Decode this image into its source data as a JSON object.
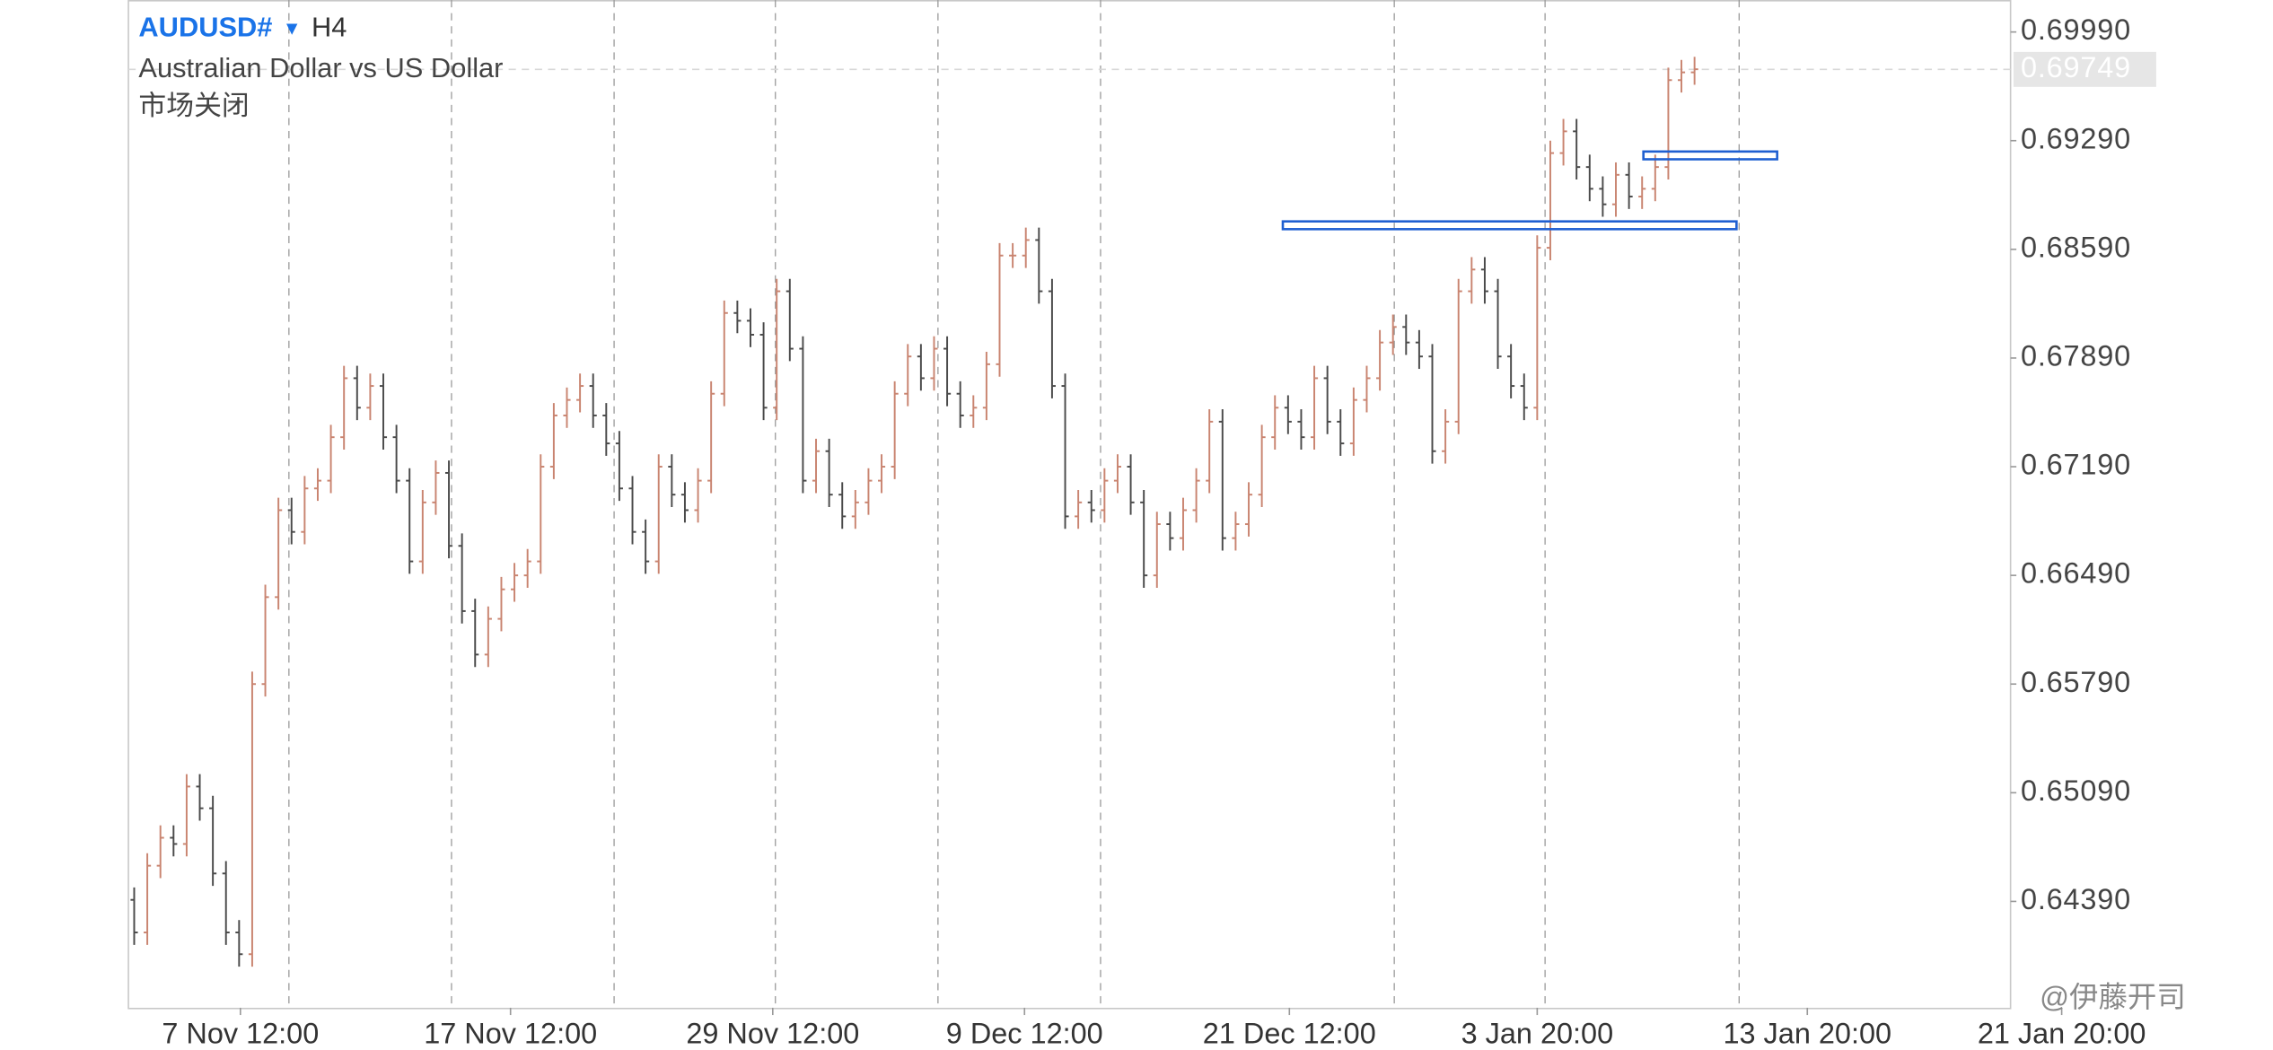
{
  "chart_data": {
    "type": "ohlc",
    "title": "AUDUSD#",
    "timeframe": "H4",
    "subtitle": "Australian Dollar vs US Dollar",
    "status": "市场关闭",
    "watermark": "@伊藤开司",
    "title_color": "#1a73e8",
    "up_color": "#c98470",
    "down_color": "#4a4a4a",
    "open": [
      0.644,
      0.6419,
      0.6462,
      0.648,
      0.6476,
      0.6513,
      0.6499,
      0.6457,
      0.6419,
      0.6405,
      0.6579,
      0.6635,
      0.6691,
      0.6677,
      0.6705,
      0.671,
      0.6738,
      0.6776,
      0.6757,
      0.6771,
      0.6738,
      0.671,
      0.6658,
      0.6696,
      0.6715,
      0.6668,
      0.6626,
      0.6598,
      0.6621,
      0.664,
      0.6649,
      0.6658,
      0.6719,
      0.6752,
      0.6762,
      0.6771,
      0.6752,
      0.6734,
      0.6705,
      0.6677,
      0.6658,
      0.6719,
      0.6701,
      0.6691,
      0.671,
      0.6766,
      0.6818,
      0.6813,
      0.6804,
      0.6757,
      0.6832,
      0.6795,
      0.671,
      0.6729,
      0.6701,
      0.6687,
      0.6696,
      0.671,
      0.6719,
      0.6766,
      0.679,
      0.6776,
      0.6795,
      0.6766,
      0.6752,
      0.6757,
      0.6785,
      0.6855,
      0.6855,
      0.6865,
      0.6832,
      0.6771,
      0.6687,
      0.6696,
      0.6691,
      0.671,
      0.6719,
      0.6696,
      0.6649,
      0.6682,
      0.6673,
      0.6691,
      0.671,
      0.6748,
      0.6673,
      0.6682,
      0.6701,
      0.6738,
      0.6757,
      0.6748,
      0.6738,
      0.6776,
      0.6748,
      0.6734,
      0.6762,
      0.6776,
      0.6799,
      0.6809,
      0.6799,
      0.679,
      0.6729,
      0.6748,
      0.6832,
      0.6846,
      0.6832,
      0.679,
      0.6771,
      0.6757,
      0.686,
      0.6921,
      0.6935,
      0.6912,
      0.6898,
      0.6888,
      0.6907,
      0.6893,
      0.6898,
      0.6912,
      0.6968,
      0.6973
    ],
    "high": [
      0.6448,
      0.647,
      0.6488,
      0.6488,
      0.6521,
      0.6521,
      0.6507,
      0.6465,
      0.6427,
      0.6587,
      0.6643,
      0.6699,
      0.6699,
      0.6713,
      0.6718,
      0.6746,
      0.6784,
      0.6784,
      0.6779,
      0.6779,
      0.6746,
      0.6718,
      0.6704,
      0.6723,
      0.6723,
      0.6676,
      0.6634,
      0.6629,
      0.6648,
      0.6657,
      0.6666,
      0.6727,
      0.676,
      0.677,
      0.6779,
      0.6779,
      0.676,
      0.6742,
      0.6713,
      0.6685,
      0.6727,
      0.6727,
      0.6709,
      0.6718,
      0.6774,
      0.6826,
      0.6826,
      0.6821,
      0.6812,
      0.684,
      0.684,
      0.6803,
      0.6737,
      0.6737,
      0.6709,
      0.6704,
      0.6718,
      0.6727,
      0.6774,
      0.6798,
      0.6798,
      0.6803,
      0.6803,
      0.6774,
      0.6765,
      0.6793,
      0.6863,
      0.6863,
      0.6873,
      0.6873,
      0.684,
      0.6779,
      0.6704,
      0.6704,
      0.6718,
      0.6727,
      0.6727,
      0.6704,
      0.669,
      0.669,
      0.6699,
      0.6718,
      0.6756,
      0.6756,
      0.669,
      0.6709,
      0.6746,
      0.6765,
      0.6765,
      0.6756,
      0.6784,
      0.6784,
      0.6756,
      0.677,
      0.6784,
      0.6807,
      0.6817,
      0.6817,
      0.6807,
      0.6798,
      0.6756,
      0.684,
      0.6854,
      0.6854,
      0.684,
      0.6798,
      0.6779,
      0.6868,
      0.6929,
      0.6943,
      0.6943,
      0.692,
      0.6906,
      0.6915,
      0.6915,
      0.6906,
      0.692,
      0.6976,
      0.6981,
      0.6983
    ],
    "low": [
      0.6411,
      0.6411,
      0.6454,
      0.6468,
      0.6468,
      0.6491,
      0.6449,
      0.6411,
      0.6397,
      0.6397,
      0.6571,
      0.6627,
      0.6669,
      0.6669,
      0.6697,
      0.6702,
      0.673,
      0.6749,
      0.6749,
      0.673,
      0.6702,
      0.665,
      0.665,
      0.6688,
      0.666,
      0.6618,
      0.659,
      0.659,
      0.6613,
      0.6632,
      0.6641,
      0.665,
      0.6711,
      0.6744,
      0.6754,
      0.6744,
      0.6726,
      0.6697,
      0.6669,
      0.665,
      0.665,
      0.6693,
      0.6683,
      0.6683,
      0.6702,
      0.6758,
      0.6805,
      0.6796,
      0.6749,
      0.6749,
      0.6787,
      0.6702,
      0.6702,
      0.6693,
      0.6679,
      0.6679,
      0.6688,
      0.6702,
      0.6711,
      0.6758,
      0.6768,
      0.6768,
      0.6758,
      0.6744,
      0.6744,
      0.6749,
      0.6777,
      0.6847,
      0.6847,
      0.6824,
      0.6763,
      0.6679,
      0.6679,
      0.6683,
      0.6683,
      0.6702,
      0.6688,
      0.6641,
      0.6641,
      0.6665,
      0.6665,
      0.6683,
      0.6702,
      0.6665,
      0.6665,
      0.6674,
      0.6693,
      0.673,
      0.674,
      0.673,
      0.673,
      0.674,
      0.6726,
      0.6726,
      0.6754,
      0.6768,
      0.6791,
      0.6791,
      0.6782,
      0.6721,
      0.6721,
      0.674,
      0.6824,
      0.6824,
      0.6782,
      0.6763,
      0.6749,
      0.6749,
      0.6852,
      0.6913,
      0.6904,
      0.689,
      0.688,
      0.688,
      0.6885,
      0.6885,
      0.689,
      0.6904,
      0.696,
      0.6965
    ],
    "close": [
      0.6419,
      0.6462,
      0.648,
      0.6476,
      0.6513,
      0.6499,
      0.6457,
      0.6419,
      0.6405,
      0.6579,
      0.6635,
      0.6691,
      0.6677,
      0.6705,
      0.671,
      0.6738,
      0.6776,
      0.6757,
      0.6771,
      0.6738,
      0.671,
      0.6658,
      0.6696,
      0.6715,
      0.6668,
      0.6626,
      0.6598,
      0.6621,
      0.664,
      0.6649,
      0.6658,
      0.6719,
      0.6752,
      0.6762,
      0.6771,
      0.6752,
      0.6734,
      0.6705,
      0.6677,
      0.6658,
      0.6719,
      0.6701,
      0.6691,
      0.671,
      0.6766,
      0.6818,
      0.6813,
      0.6804,
      0.6757,
      0.6832,
      0.6795,
      0.671,
      0.6729,
      0.6701,
      0.6687,
      0.6696,
      0.671,
      0.6719,
      0.6766,
      0.679,
      0.6776,
      0.6795,
      0.6766,
      0.6752,
      0.6757,
      0.6785,
      0.6855,
      0.6855,
      0.6865,
      0.6832,
      0.6771,
      0.6687,
      0.6696,
      0.6691,
      0.671,
      0.6719,
      0.6696,
      0.6649,
      0.6682,
      0.6673,
      0.6691,
      0.671,
      0.6748,
      0.6673,
      0.6682,
      0.6701,
      0.6738,
      0.6757,
      0.6748,
      0.6738,
      0.6776,
      0.6748,
      0.6734,
      0.6762,
      0.6776,
      0.6799,
      0.6809,
      0.6799,
      0.679,
      0.6729,
      0.6748,
      0.6832,
      0.6846,
      0.6832,
      0.679,
      0.6771,
      0.6757,
      0.686,
      0.6921,
      0.6935,
      0.6912,
      0.6898,
      0.6888,
      0.6907,
      0.6893,
      0.6898,
      0.6912,
      0.6968,
      0.6973,
      0.6975
    ],
    "xlim": [
      -0.44,
      143.1
    ],
    "xticks": [
      {
        "value": 8.1,
        "label": "7 Nov 12:00"
      },
      {
        "value": 28.7,
        "label": "17 Nov 12:00"
      },
      {
        "value": 48.7,
        "label": "29 Nov 12:00"
      },
      {
        "value": 67.9,
        "label": "9 Dec 12:00"
      },
      {
        "value": 88.1,
        "label": "21 Dec 12:00"
      },
      {
        "value": 107.0,
        "label": "3 Jan 20:00"
      },
      {
        "value": 127.6,
        "label": "13 Jan 20:00"
      },
      {
        "value": 147.0,
        "label": "21 Jan 20:00"
      }
    ],
    "period_separators": [
      11.8,
      24.2,
      36.6,
      48.9,
      61.3,
      73.7,
      96.1,
      107.6,
      122.4
    ],
    "ylim": [
      0.63705,
      0.70196
    ],
    "yticks": [
      {
        "value": 0.6999,
        "label": "0.69990"
      },
      {
        "value": 0.6929,
        "label": "0.69290"
      },
      {
        "value": 0.6859,
        "label": "0.68590"
      },
      {
        "value": 0.6789,
        "label": "0.67890"
      },
      {
        "value": 0.6719,
        "label": "0.67190"
      },
      {
        "value": 0.6649,
        "label": "0.66490"
      },
      {
        "value": 0.6579,
        "label": "0.65790"
      },
      {
        "value": 0.6509,
        "label": "0.65090"
      },
      {
        "value": 0.6439,
        "label": "0.64390"
      }
    ],
    "current_price": {
      "value": 0.69749,
      "label": "0.69749"
    },
    "rectangle_color": "#1f5fd1",
    "rectangles": [
      {
        "x": [
          87.6,
          122.2
        ],
        "y": [
          0.6872,
          0.6877
        ]
      },
      {
        "x": [
          115.1,
          125.3
        ],
        "y": [
          0.6917,
          0.6922
        ]
      }
    ]
  }
}
